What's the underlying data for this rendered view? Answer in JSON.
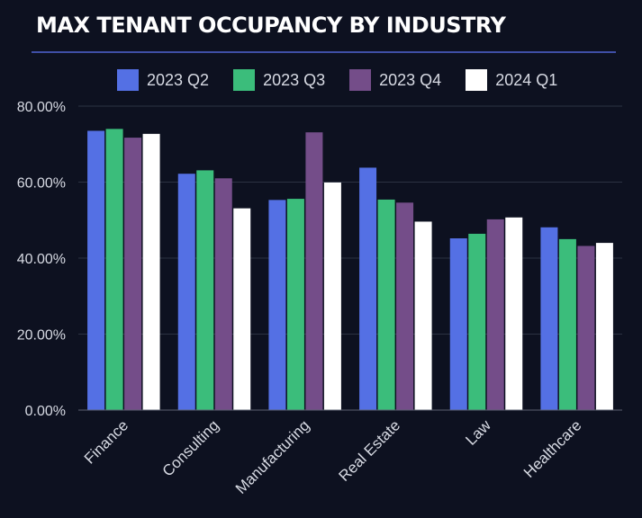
{
  "title": "MAX TENANT OCCUPANCY BY INDUSTRY",
  "chart_data": {
    "type": "bar",
    "title": "MAX TENANT OCCUPANCY BY INDUSTRY",
    "xlabel": "",
    "ylabel": "",
    "categories": [
      "Finance",
      "Consulting",
      "Manufacturing",
      "Real Estate",
      "Law",
      "Healthcare"
    ],
    "series": [
      {
        "name": "2023 Q2",
        "color": "#5470e4",
        "values": [
          73.5,
          62.2,
          55.3,
          63.8,
          45.2,
          48.1
        ]
      },
      {
        "name": "2023 Q3",
        "color": "#3bbd7b",
        "values": [
          74.0,
          63.1,
          55.6,
          55.4,
          46.4,
          45.0
        ]
      },
      {
        "name": "2023 Q4",
        "color": "#744d89",
        "values": [
          71.7,
          61.0,
          73.1,
          54.6,
          50.2,
          43.2
        ]
      },
      {
        "name": "2024 Q1",
        "color": "#ffffff",
        "values": [
          72.7,
          53.1,
          59.9,
          49.6,
          50.7,
          44.0
        ]
      }
    ],
    "ylim": [
      0,
      80
    ],
    "yticks": [
      "0.00%",
      "20.00%",
      "40.00%",
      "60.00%",
      "80.00%"
    ],
    "grid": true,
    "legend_position": "top"
  }
}
